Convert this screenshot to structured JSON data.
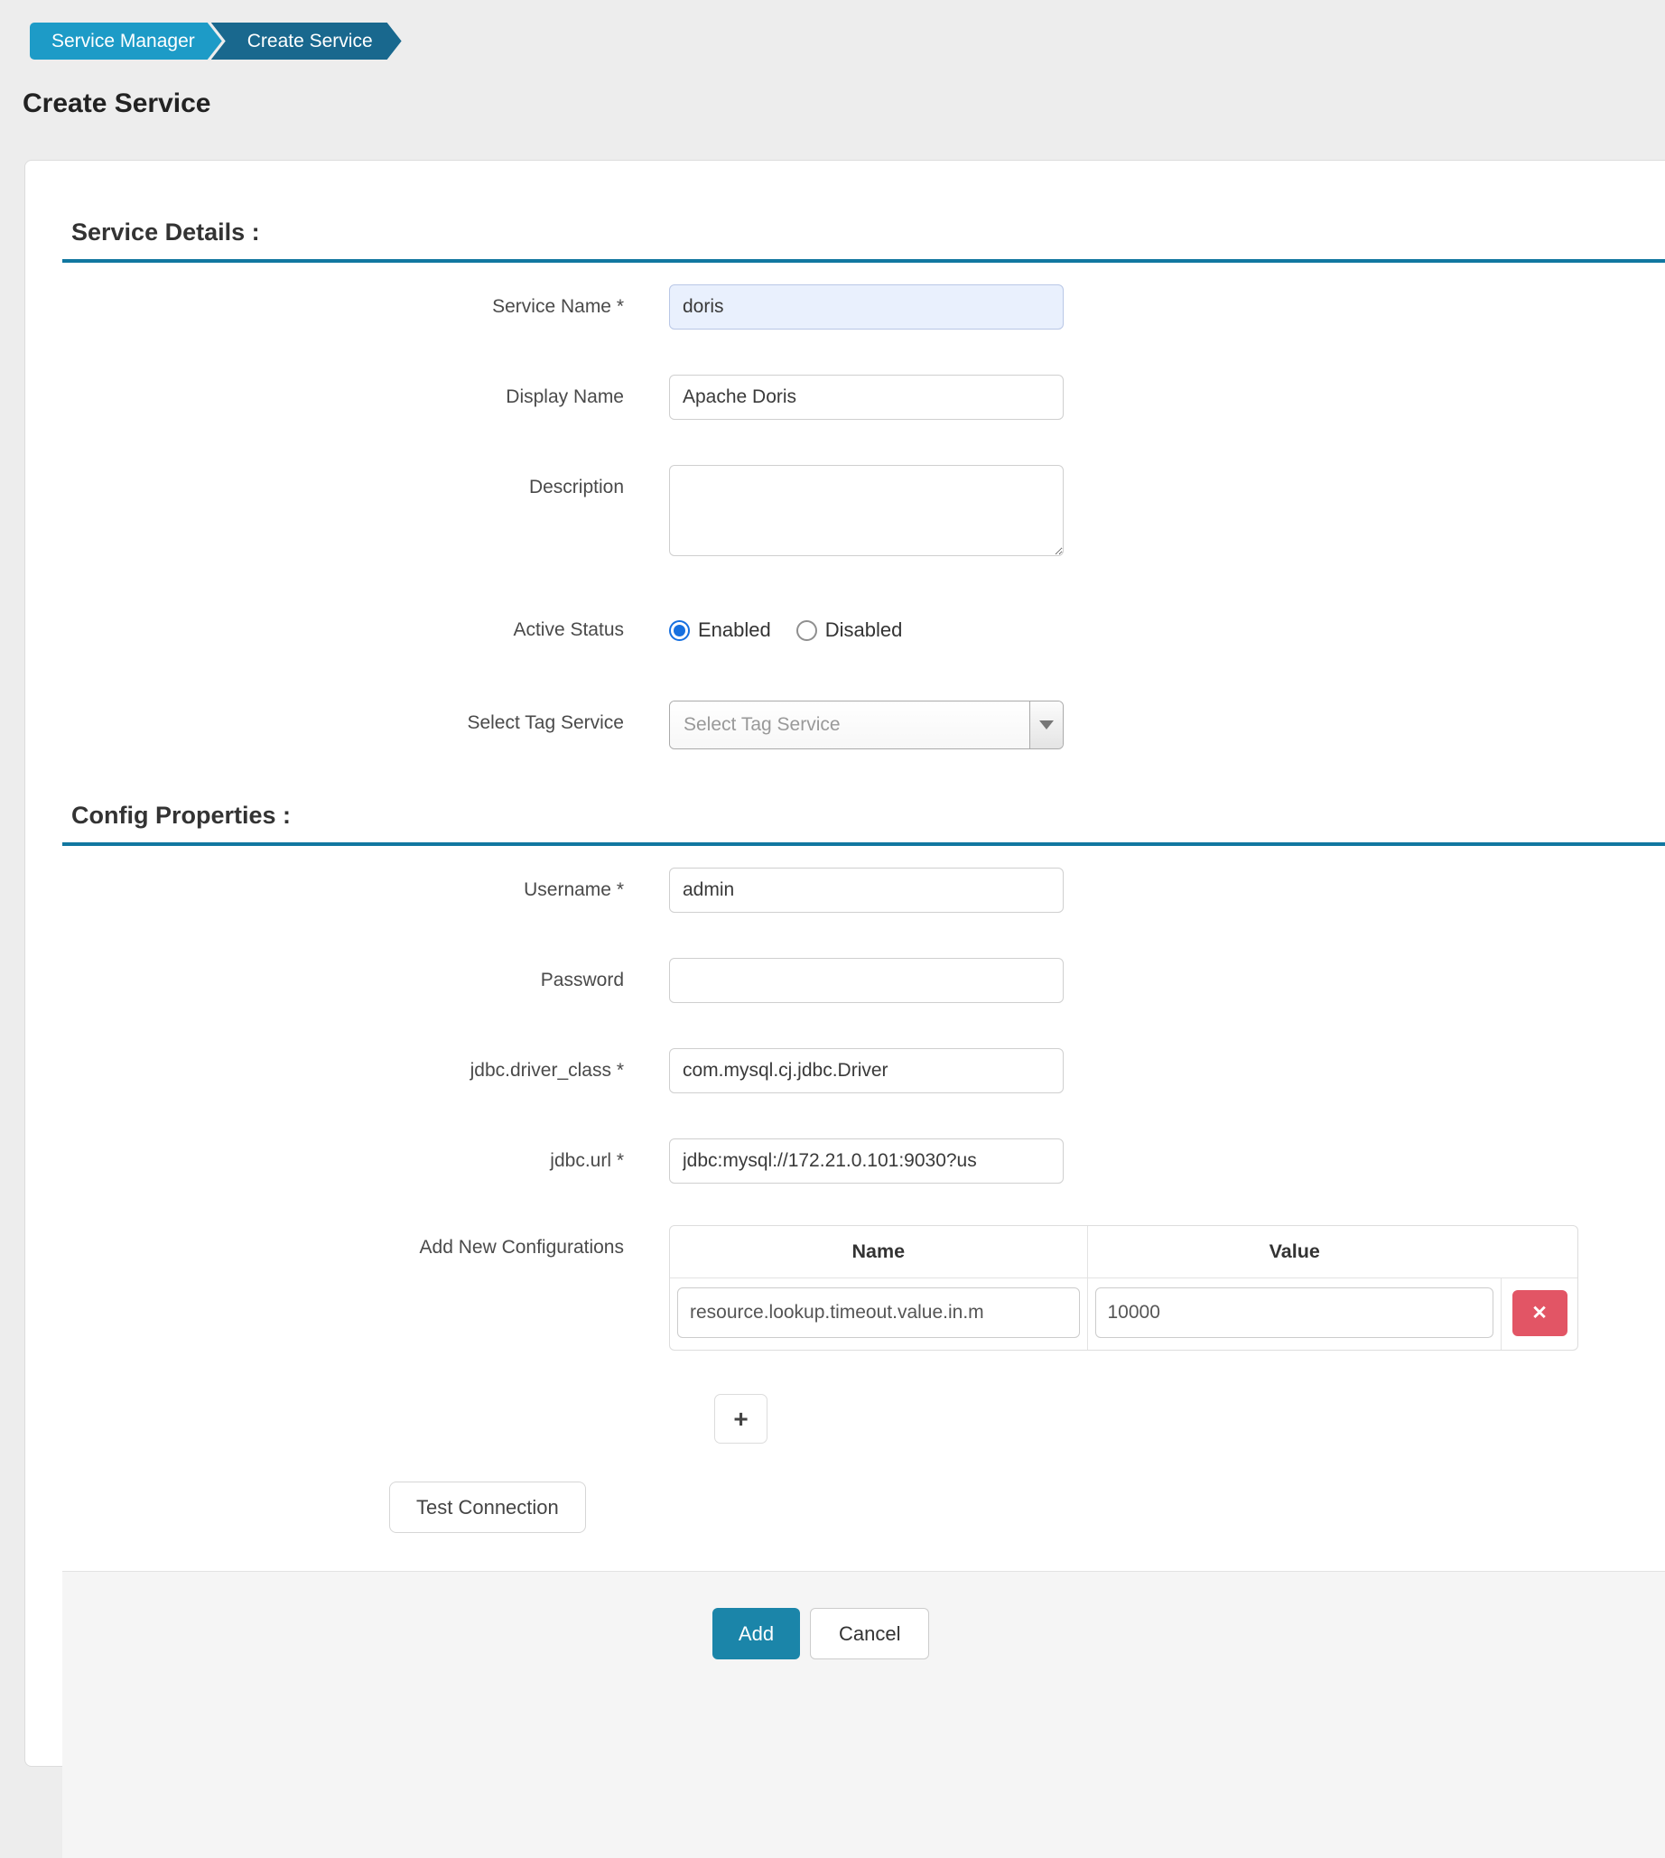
{
  "breadcrumb": {
    "items": [
      {
        "label": "Service Manager"
      },
      {
        "label": "Create Service"
      }
    ]
  },
  "page": {
    "title": "Create Service"
  },
  "service_details": {
    "heading": "Service Details :",
    "service_name": {
      "label": "Service Name *",
      "value": "doris"
    },
    "display_name": {
      "label": "Display Name",
      "value": "Apache Doris"
    },
    "description": {
      "label": "Description",
      "value": ""
    },
    "active_status": {
      "label": "Active Status",
      "options": [
        {
          "label": "Enabled"
        },
        {
          "label": "Disabled"
        }
      ],
      "selected": "Enabled"
    },
    "tag_service": {
      "label": "Select Tag Service",
      "placeholder": "Select Tag Service"
    }
  },
  "config_properties": {
    "heading": "Config Properties :",
    "username": {
      "label": "Username *",
      "value": "admin"
    },
    "password": {
      "label": "Password",
      "value": ""
    },
    "jdbc_driver_class": {
      "label": "jdbc.driver_class *",
      "value": "com.mysql.cj.jdbc.Driver"
    },
    "jdbc_url": {
      "label": "jdbc.url *",
      "value": "jdbc:mysql://172.21.0.101:9030?us"
    },
    "add_new_configurations": {
      "label": "Add New Configurations",
      "columns": {
        "name": "Name",
        "value": "Value"
      },
      "rows": [
        {
          "name": "resource.lookup.timeout.value.in.m",
          "value": "10000"
        }
      ],
      "delete_glyph": "✕",
      "add_row_glyph": "+"
    },
    "test_connection_label": "Test Connection"
  },
  "footer": {
    "add_label": "Add",
    "cancel_label": "Cancel"
  },
  "colors": {
    "breadcrumb_primary": "#1d9bc7",
    "breadcrumb_active": "#19688e",
    "section_rule": "#1177a0",
    "primary_button": "#1b85a9",
    "danger_button": "#e25565",
    "radio_selected": "#1670e0",
    "highlight_input_bg": "#e9f0fd",
    "page_bg": "#ededed"
  }
}
